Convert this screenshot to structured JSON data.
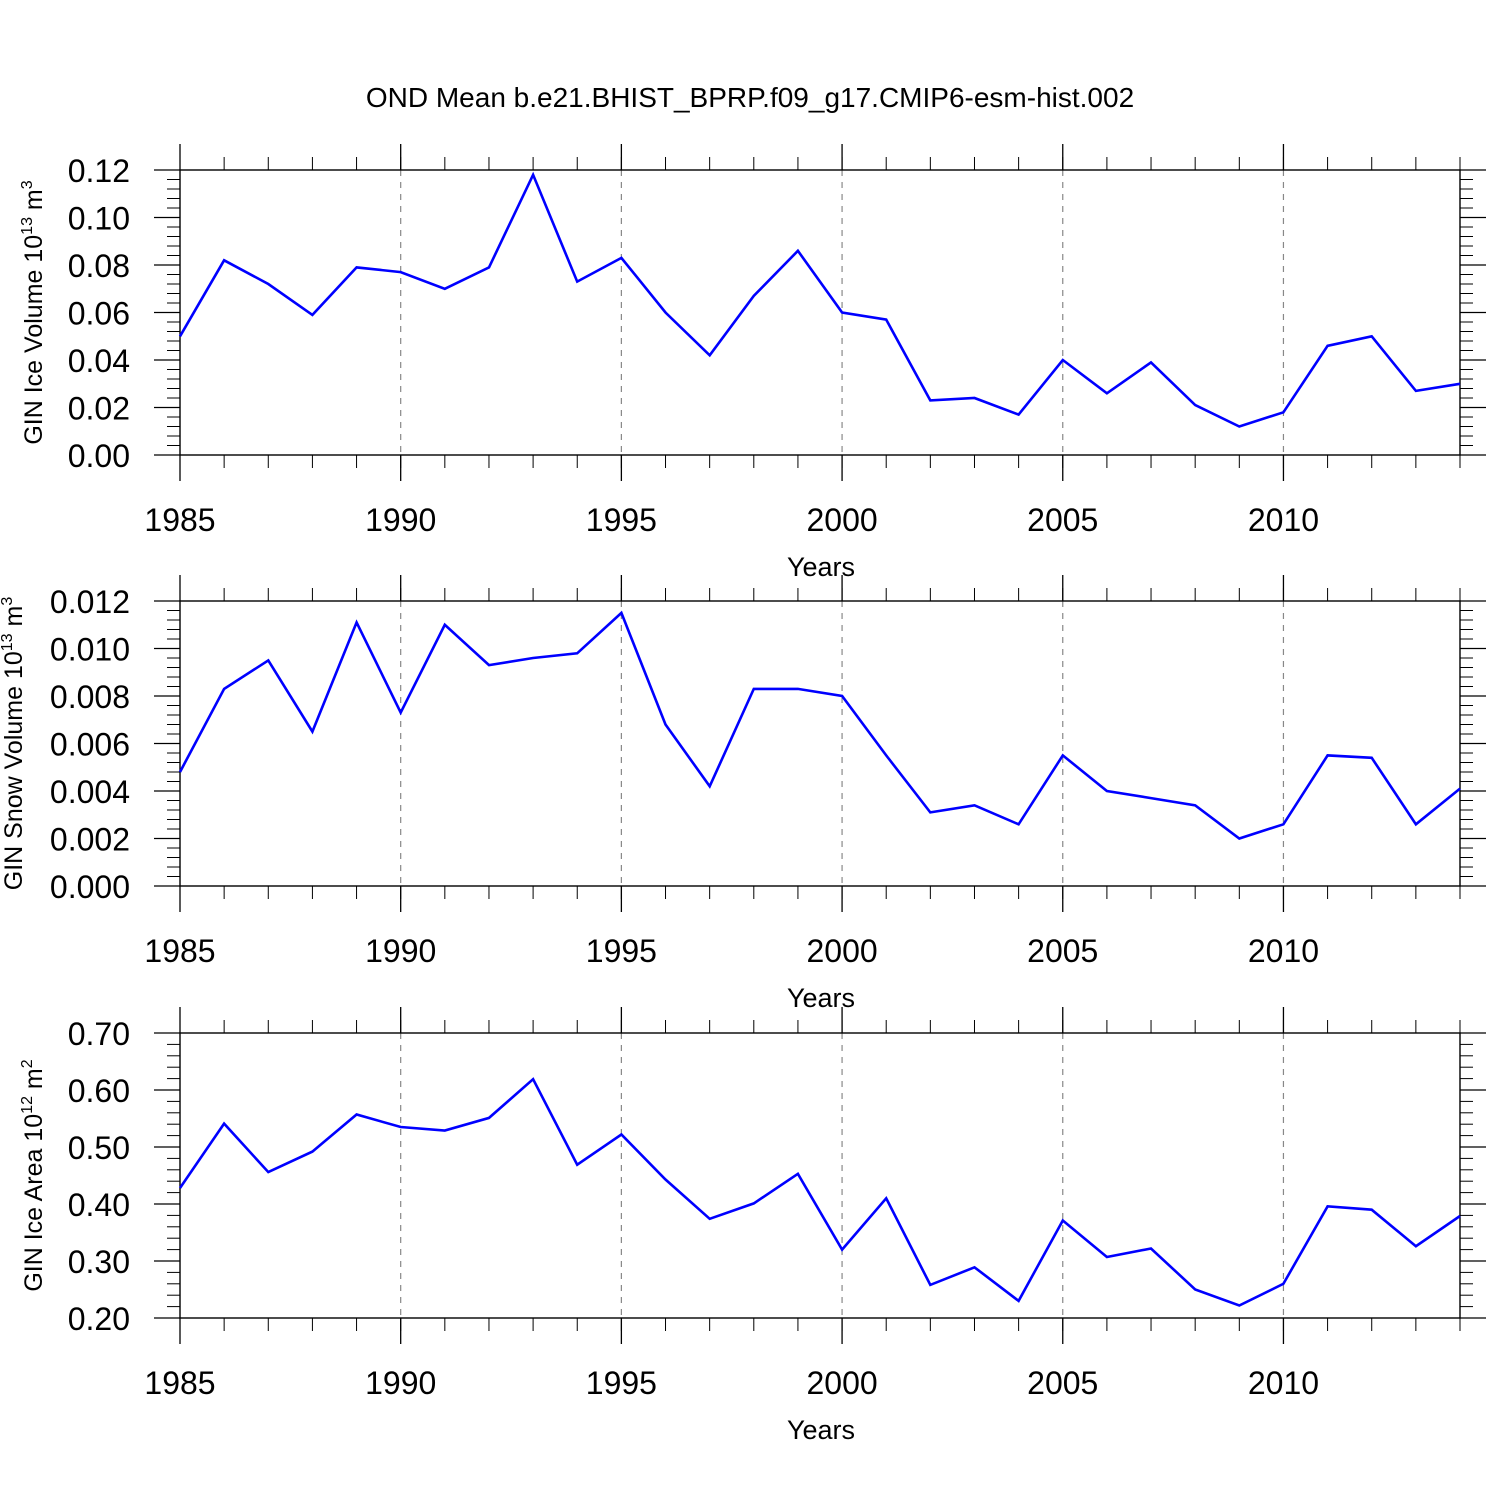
{
  "figure": {
    "title": "OND Mean b.e21.BHIST_BPRP.f09_g17.CMIP6-esm-hist.002"
  },
  "chart_data": [
    {
      "type": "line",
      "xlabel": "Years",
      "ylabel": {
        "text": "GIN Ice Volume 10",
        "sup": "13",
        "unit": " m",
        "unit_sup": "3"
      },
      "xlim": [
        1985,
        2014
      ],
      "ylim": [
        0.0,
        0.12
      ],
      "xticks": [
        "1985",
        "1990",
        "1995",
        "2000",
        "2005",
        "2010"
      ],
      "yticks": [
        "0.00",
        "0.02",
        "0.04",
        "0.06",
        "0.08",
        "0.10",
        "0.12"
      ],
      "grid": "dashed vertical lines at major x ticks",
      "color": "#0000ff",
      "x": [
        1985,
        1986,
        1987,
        1988,
        1989,
        1990,
        1991,
        1992,
        1993,
        1994,
        1995,
        1996,
        1997,
        1998,
        1999,
        2000,
        2001,
        2002,
        2003,
        2004,
        2005,
        2006,
        2007,
        2008,
        2009,
        2010,
        2011,
        2012,
        2013,
        2014
      ],
      "values": [
        0.05,
        0.082,
        0.072,
        0.059,
        0.079,
        0.077,
        0.07,
        0.079,
        0.118,
        0.073,
        0.083,
        0.06,
        0.042,
        0.067,
        0.086,
        0.06,
        0.057,
        0.023,
        0.024,
        0.017,
        0.04,
        0.026,
        0.039,
        0.021,
        0.012,
        0.018,
        0.046,
        0.05,
        0.027,
        0.03
      ]
    },
    {
      "type": "line",
      "xlabel": "Years",
      "ylabel": {
        "text": "GIN Snow Volume 10",
        "sup": "13",
        "unit": " m",
        "unit_sup": "3"
      },
      "xlim": [
        1985,
        2014
      ],
      "ylim": [
        0.0,
        0.012
      ],
      "xticks": [
        "1985",
        "1990",
        "1995",
        "2000",
        "2005",
        "2010"
      ],
      "yticks": [
        "0.000",
        "0.002",
        "0.004",
        "0.006",
        "0.008",
        "0.010",
        "0.012"
      ],
      "grid": "dashed vertical lines at major x ticks",
      "color": "#0000ff",
      "x": [
        1985,
        1986,
        1987,
        1988,
        1989,
        1990,
        1991,
        1992,
        1993,
        1994,
        1995,
        1996,
        1997,
        1998,
        1999,
        2000,
        2001,
        2002,
        2003,
        2004,
        2005,
        2006,
        2007,
        2008,
        2009,
        2010,
        2011,
        2012,
        2013,
        2014
      ],
      "values": [
        0.0048,
        0.0083,
        0.0095,
        0.0065,
        0.0111,
        0.0073,
        0.011,
        0.0093,
        0.0096,
        0.0098,
        0.0115,
        0.0068,
        0.0042,
        0.0083,
        0.0083,
        0.008,
        0.0055,
        0.0031,
        0.0034,
        0.0026,
        0.0055,
        0.004,
        0.0037,
        0.0034,
        0.002,
        0.0026,
        0.0055,
        0.0054,
        0.0026,
        0.0041
      ]
    },
    {
      "type": "line",
      "xlabel": "Years",
      "ylabel": {
        "text": "GIN Ice Area 10",
        "sup": "12",
        "unit": " m",
        "unit_sup": "2"
      },
      "xlim": [
        1985,
        2014
      ],
      "ylim": [
        0.2,
        0.7
      ],
      "xticks": [
        "1985",
        "1990",
        "1995",
        "2000",
        "2005",
        "2010"
      ],
      "yticks": [
        "0.20",
        "0.30",
        "0.40",
        "0.50",
        "0.60",
        "0.70"
      ],
      "grid": "dashed vertical lines at major x ticks",
      "color": "#0000ff",
      "x": [
        1985,
        1986,
        1987,
        1988,
        1989,
        1990,
        1991,
        1992,
        1993,
        1994,
        1995,
        1996,
        1997,
        1998,
        1999,
        2000,
        2001,
        2002,
        2003,
        2004,
        2005,
        2006,
        2007,
        2008,
        2009,
        2010,
        2011,
        2012,
        2013,
        2014
      ],
      "values": [
        0.428,
        0.541,
        0.456,
        0.492,
        0.557,
        0.535,
        0.529,
        0.551,
        0.619,
        0.469,
        0.522,
        0.443,
        0.374,
        0.401,
        0.453,
        0.32,
        0.41,
        0.258,
        0.289,
        0.23,
        0.371,
        0.307,
        0.322,
        0.25,
        0.222,
        0.26,
        0.396,
        0.39,
        0.326,
        0.379
      ]
    }
  ]
}
